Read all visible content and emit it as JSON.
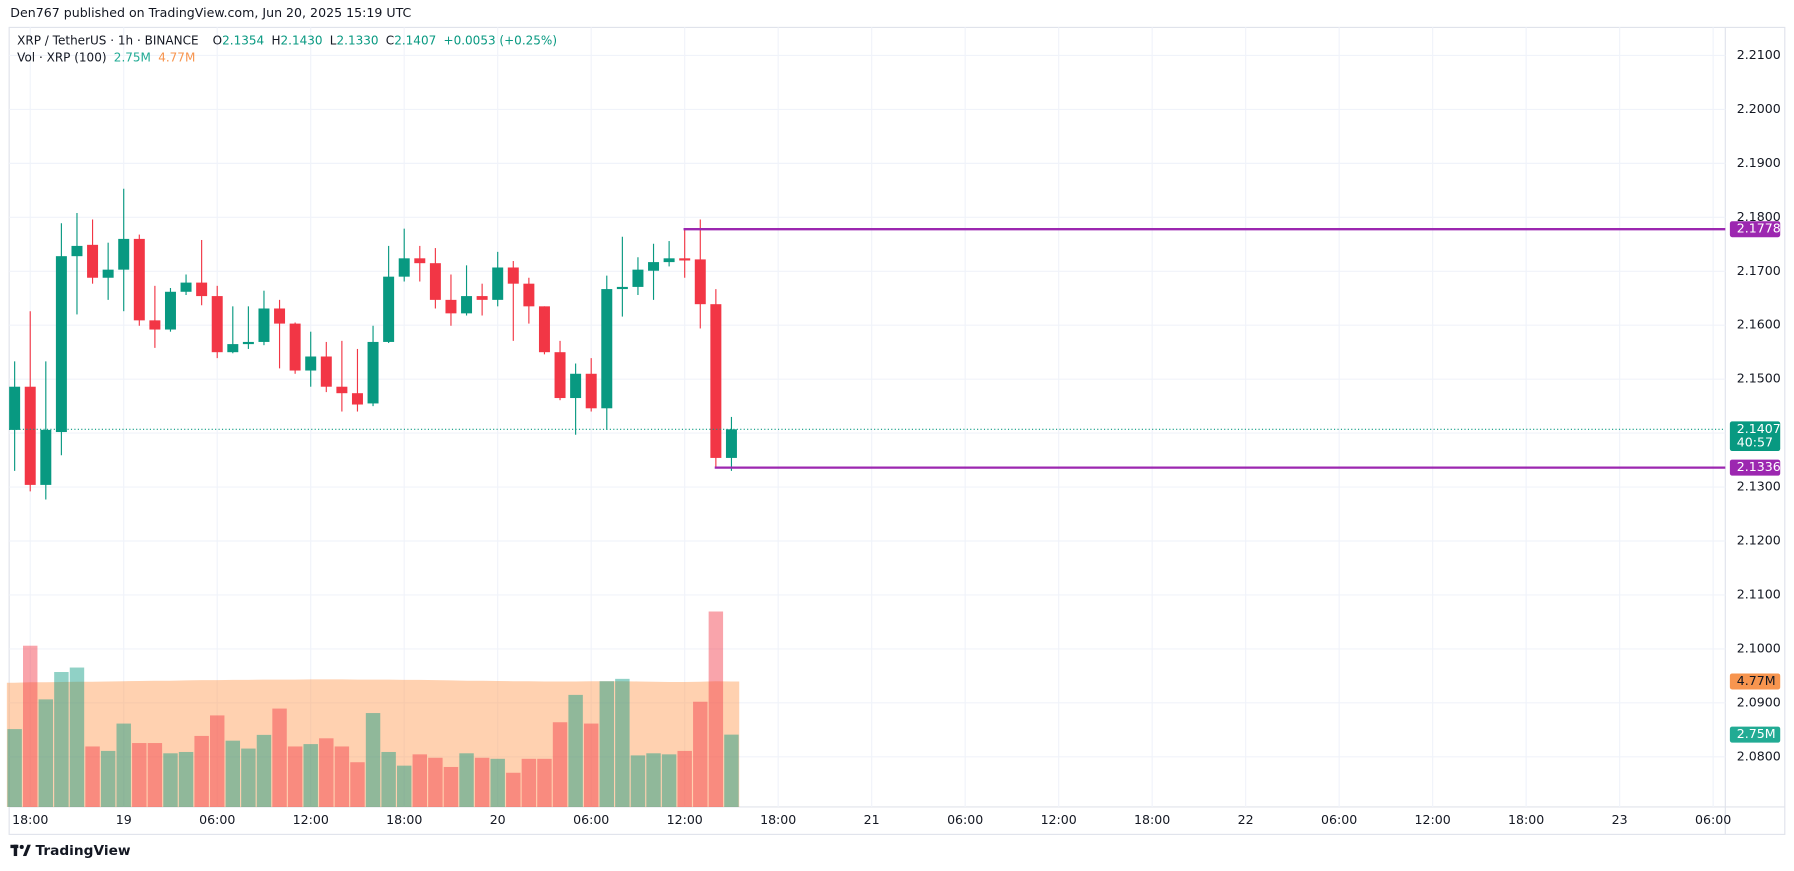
{
  "header": {
    "published": "Den767 published on TradingView.com, Jun 20, 2025 15:19 UTC",
    "footer": "TradingView"
  },
  "legend": {
    "symbol": "XRP / TetherUS · 1h · BINANCE",
    "o": "O",
    "open": "2.1354",
    "h": "H",
    "high": "2.1430",
    "l": "L",
    "low": "2.1330",
    "c": "C",
    "close": "2.1407",
    "change": "+0.0053 (+0.25%)",
    "volume_title": "Vol · XRP (100)"
  },
  "chart_data": {
    "type": "candlestick",
    "categories": [
      null,
      "18:00",
      null,
      null,
      null,
      null,
      null,
      "19",
      null,
      null,
      null,
      null,
      null,
      "06:00",
      null,
      null,
      null,
      null,
      null,
      "12:00",
      null,
      null,
      null,
      null,
      null,
      "18:00",
      null,
      null,
      null,
      null,
      null,
      "20",
      null,
      null,
      null,
      null,
      null,
      "06:00",
      null,
      null,
      null,
      null,
      null,
      "12:00",
      null,
      null,
      null,
      null,
      null,
      "18:00",
      null,
      null,
      null,
      null,
      null,
      "21",
      null,
      null,
      null,
      null,
      null,
      "06:00",
      null,
      null,
      null,
      null,
      null,
      "12:00",
      null,
      null,
      null,
      null,
      null,
      "18:00",
      null,
      null,
      null,
      null,
      null,
      "22",
      null,
      null,
      null,
      null,
      null,
      "06:00",
      null,
      null,
      null,
      null,
      null,
      "12:00",
      null,
      null,
      null,
      null,
      null,
      "18:00",
      null,
      null,
      null,
      null,
      null,
      "23",
      null,
      null,
      null,
      null,
      null,
      "06:00"
    ],
    "open": [
      2.1406,
      2.1486,
      2.1304,
      2.1402,
      2.1728,
      2.1749,
      2.1688,
      2.1703,
      2.176,
      2.1609,
      2.1592,
      2.1662,
      2.1679,
      2.1654,
      2.155,
      2.1565,
      2.1569,
      2.1631,
      2.1603,
      2.1516,
      2.1542,
      2.1486,
      2.1474,
      2.1455,
      2.1569,
      2.169,
      2.1724,
      2.1715,
      2.1647,
      2.1622,
      2.1654,
      2.1647,
      2.1707,
      2.1677,
      2.1635,
      2.155,
      2.1465,
      2.151,
      2.1446,
      2.1667,
      2.1671,
      2.1701,
      2.1717,
      2.1724,
      2.1722,
      2.1639,
      2.1354,
      null,
      null,
      null,
      null,
      null,
      null,
      null,
      null,
      null,
      null,
      null,
      null,
      null,
      null,
      null,
      null,
      null,
      null,
      null,
      null,
      null,
      null,
      null,
      null,
      null,
      null,
      null,
      null,
      null,
      null,
      null,
      null,
      null,
      null,
      null,
      null,
      null,
      null,
      null,
      null,
      null,
      null,
      null,
      null,
      null,
      null,
      null,
      null,
      null,
      null,
      null,
      null,
      null,
      null,
      null,
      null,
      null,
      null,
      null,
      null,
      null,
      null,
      null
    ],
    "high": [
      2.1533,
      2.1626,
      2.1533,
      2.1789,
      2.1808,
      2.1796,
      2.1753,
      2.1853,
      2.1768,
      2.1673,
      2.1669,
      2.1694,
      2.1758,
      2.1673,
      2.1635,
      2.1635,
      2.1664,
      2.1647,
      2.1605,
      2.1588,
      2.1569,
      2.1571,
      2.1556,
      2.1599,
      2.1747,
      2.1779,
      2.1747,
      2.1743,
      2.1694,
      2.1711,
      2.1677,
      2.1736,
      2.1719,
      2.1688,
      2.1635,
      2.1571,
      2.1529,
      2.1539,
      2.1692,
      2.1764,
      2.1726,
      2.1751,
      2.1756,
      2.1779,
      2.1796,
      2.1667,
      2.143,
      null,
      null,
      null,
      null,
      null,
      null,
      null,
      null,
      null,
      null,
      null,
      null,
      null,
      null,
      null,
      null,
      null,
      null,
      null,
      null,
      null,
      null,
      null,
      null,
      null,
      null,
      null,
      null,
      null,
      null,
      null,
      null,
      null,
      null,
      null,
      null,
      null,
      null,
      null,
      null,
      null,
      null,
      null,
      null,
      null,
      null,
      null,
      null,
      null,
      null,
      null,
      null,
      null,
      null,
      null,
      null,
      null,
      null,
      null,
      null,
      null,
      null,
      null
    ],
    "low": [
      2.133,
      2.1292,
      2.1277,
      2.1359,
      2.162,
      2.1677,
      2.1647,
      2.1626,
      2.1599,
      2.1558,
      2.1588,
      2.1656,
      2.1637,
      2.1539,
      2.1548,
      2.1556,
      2.1563,
      2.152,
      2.151,
      2.1486,
      2.1476,
      2.144,
      2.144,
      2.145,
      2.1567,
      2.1681,
      2.1681,
      2.1631,
      2.1599,
      2.1618,
      2.1618,
      2.1635,
      2.1571,
      2.1603,
      2.1546,
      2.1461,
      2.1397,
      2.144,
      2.1406,
      2.1616,
      2.1656,
      2.1647,
      2.1709,
      2.1688,
      2.1594,
      2.1336,
      2.133,
      null,
      null,
      null,
      null,
      null,
      null,
      null,
      null,
      null,
      null,
      null,
      null,
      null,
      null,
      null,
      null,
      null,
      null,
      null,
      null,
      null,
      null,
      null,
      null,
      null,
      null,
      null,
      null,
      null,
      null,
      null,
      null,
      null,
      null,
      null,
      null,
      null,
      null,
      null,
      null,
      null,
      null,
      null,
      null,
      null,
      null,
      null,
      null,
      null,
      null,
      null,
      null,
      null,
      null,
      null,
      null,
      null,
      null,
      null,
      null,
      null,
      null,
      null
    ],
    "close": [
      2.1486,
      2.1304,
      2.1406,
      2.1728,
      2.1747,
      2.1688,
      2.1703,
      2.176,
      2.1609,
      2.1592,
      2.1662,
      2.1679,
      2.1654,
      2.155,
      2.1565,
      2.1569,
      2.1631,
      2.1603,
      2.1516,
      2.1542,
      2.1486,
      2.1474,
      2.1453,
      2.1569,
      2.169,
      2.1724,
      2.1715,
      2.1647,
      2.1622,
      2.1654,
      2.1647,
      2.1707,
      2.1677,
      2.1635,
      2.155,
      2.1465,
      2.151,
      2.1446,
      2.1667,
      2.1671,
      2.1703,
      2.1717,
      2.1724,
      2.172,
      2.1639,
      2.1354,
      2.1407,
      null,
      null,
      null,
      null,
      null,
      null,
      null,
      null,
      null,
      null,
      null,
      null,
      null,
      null,
      null,
      null,
      null,
      null,
      null,
      null,
      null,
      null,
      null,
      null,
      null,
      null,
      null,
      null,
      null,
      null,
      null,
      null,
      null,
      null,
      null,
      null,
      null,
      null,
      null,
      null,
      null,
      null,
      null,
      null,
      null,
      null,
      null,
      null,
      null,
      null,
      null,
      null,
      null,
      null,
      null,
      null,
      null,
      null,
      null,
      null,
      null,
      null,
      null
    ],
    "up_color": "#089981",
    "down_color": "#f23645",
    "ylim": [
      2.0707,
      2.2152
    ],
    "yticks": [
      {
        "value": 2.08,
        "label": "2.0800"
      },
      {
        "value": 2.09,
        "label": "2.0900"
      },
      {
        "value": 2.1,
        "label": "2.1000"
      },
      {
        "value": 2.11,
        "label": "2.1100"
      },
      {
        "value": 2.12,
        "label": "2.1200"
      },
      {
        "value": 2.13,
        "label": "2.1300"
      },
      {
        "value": 2.14,
        "label": "2.1400"
      },
      {
        "value": 2.15,
        "label": "2.1500"
      },
      {
        "value": 2.16,
        "label": "2.1600"
      },
      {
        "value": 2.17,
        "label": "2.1700"
      },
      {
        "value": 2.18,
        "label": "2.1800"
      },
      {
        "value": 2.19,
        "label": "2.1900"
      },
      {
        "value": 2.2,
        "label": "2.2000"
      },
      {
        "value": 2.21,
        "label": "2.2100"
      }
    ],
    "grid": true,
    "volume": {
      "values": [
        2.96,
        6.13,
        4.09,
        5.13,
        5.3,
        2.3,
        2.13,
        3.17,
        2.43,
        2.43,
        2.04,
        2.09,
        2.7,
        3.48,
        2.52,
        2.22,
        2.74,
        3.74,
        2.3,
        2.39,
        2.61,
        2.3,
        1.7,
        3.57,
        2.09,
        1.57,
        2.0,
        1.87,
        1.52,
        2.04,
        1.87,
        1.83,
        1.3,
        1.83,
        1.83,
        3.22,
        4.26,
        3.17,
        4.78,
        4.87,
        1.96,
        2.04,
        2.0,
        2.13,
        4.0,
        7.43,
        2.75,
        null,
        null,
        null,
        null,
        null,
        null,
        null,
        null,
        null,
        null,
        null,
        null,
        null,
        null,
        null,
        null,
        null,
        null,
        null,
        null,
        null,
        null,
        null,
        null,
        null,
        null,
        null,
        null,
        null,
        null,
        null,
        null,
        null,
        null,
        null,
        null,
        null,
        null,
        null,
        null,
        null,
        null,
        null,
        null,
        null,
        null,
        null,
        null,
        null,
        null,
        null,
        null,
        null,
        null,
        null,
        null,
        null,
        null,
        null,
        null,
        null,
        null,
        null
      ],
      "last_label": "2.75M"
    },
    "volume_ma": {
      "color": "#ff9850",
      "values": [
        4.72,
        4.74,
        4.74,
        4.75,
        4.76,
        4.76,
        4.77,
        4.78,
        4.79,
        4.8,
        4.8,
        4.81,
        4.82,
        4.82,
        4.83,
        4.83,
        4.84,
        4.84,
        4.84,
        4.85,
        4.85,
        4.85,
        4.84,
        4.84,
        4.84,
        4.83,
        4.83,
        4.82,
        4.81,
        4.8,
        4.8,
        4.79,
        4.78,
        4.78,
        4.77,
        4.77,
        4.77,
        4.78,
        4.78,
        4.78,
        4.77,
        4.76,
        4.75,
        4.75,
        4.76,
        4.78,
        4.77,
        null,
        null,
        null,
        null,
        null,
        null,
        null,
        null,
        null,
        null,
        null,
        null,
        null,
        null,
        null,
        null,
        null,
        null,
        null,
        null,
        null,
        null,
        null,
        null,
        null,
        null,
        null,
        null,
        null,
        null,
        null,
        null,
        null,
        null,
        null,
        null,
        null,
        null,
        null,
        null,
        null,
        null,
        null,
        null,
        null,
        null,
        null,
        null,
        null,
        null,
        null,
        null,
        null,
        null,
        null,
        null,
        null,
        null,
        null,
        null,
        null,
        null,
        null
      ],
      "last_label": "4.77M"
    },
    "levels": [
      {
        "value": 2.1778,
        "color": "#9c27b0"
      },
      {
        "value": 2.1336,
        "color": "#9c27b0"
      }
    ],
    "last_price": {
      "value": 2.1407,
      "countdown": "40:57"
    }
  }
}
